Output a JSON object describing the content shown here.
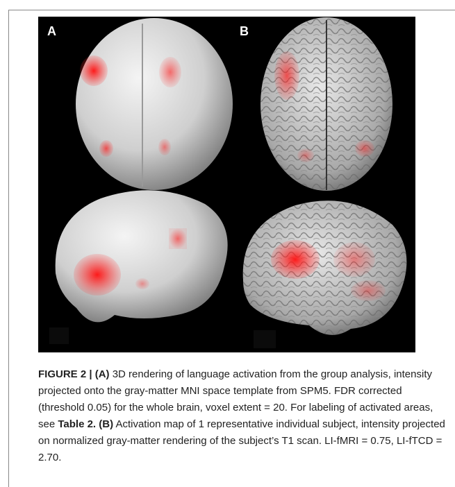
{
  "figure": {
    "panel_a_label": "A",
    "panel_b_label": "B"
  },
  "caption": {
    "figure_label": "FIGURE 2 |",
    "a_label": "(A)",
    "a_text": "3D rendering of language activation from the group analysis, intensity projected onto the gray-matter MNI space template from SPM5. FDR corrected (threshold 0.05) for the whole brain, voxel extent = 20. For labeling of activated areas, see",
    "table_ref": "Table 2.",
    "b_label": "(B)",
    "b_text": "Activation map of 1 representative individual subject, intensity projected on normalized gray-matter rendering of the subject’s T1 scan. LI-fMRI = 0.75, LI-fTCD = 2.70."
  }
}
